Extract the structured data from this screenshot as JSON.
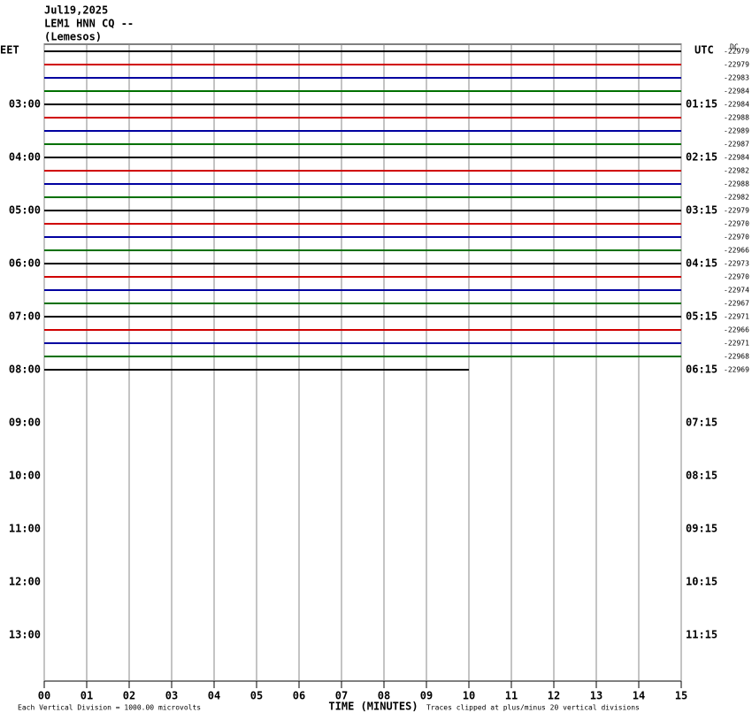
{
  "chart_data": {
    "type": "helicorder",
    "title": [
      "Jul19,2025",
      "LEM1 HNN CQ --",
      "(Lemesos)"
    ],
    "left_zone": "EET",
    "right_zone": "UTC",
    "offset_header": "DC",
    "left_hours": [
      "03:00",
      "04:00",
      "05:00",
      "06:00",
      "07:00",
      "08:00",
      "09:00",
      "10:00",
      "11:00",
      "12:00",
      "13:00"
    ],
    "right_hours": [
      "01:15",
      "02:15",
      "03:15",
      "04:15",
      "05:15",
      "06:15",
      "07:15",
      "08:15",
      "09:15",
      "10:15",
      "11:15"
    ],
    "trace_colors": [
      "#000000",
      "#d00000",
      "#0000a0",
      "#007000"
    ],
    "offsets": [
      -22979,
      -22979,
      -22983,
      -22984,
      -22984,
      -22988,
      -22989,
      -22987,
      -22984,
      -22982,
      -22988,
      -22982,
      -22979,
      -22970,
      -22970,
      -22966,
      -22973,
      -22970,
      -22974,
      -22967,
      -22971,
      -22966,
      -22971,
      -22968,
      -22969
    ],
    "last_trace_end": 10,
    "xlim": [
      0,
      15
    ],
    "xticks": [
      {
        "value": 0,
        "label": "00"
      },
      {
        "value": 1,
        "label": "01"
      },
      {
        "value": 2,
        "label": "02"
      },
      {
        "value": 3,
        "label": "03"
      },
      {
        "value": 4,
        "label": "04"
      },
      {
        "value": 5,
        "label": "05"
      },
      {
        "value": 6,
        "label": "06"
      },
      {
        "value": 7,
        "label": "07"
      },
      {
        "value": 8,
        "label": "08"
      },
      {
        "value": 9,
        "label": "09"
      },
      10,
      11,
      12,
      13,
      14,
      15
    ],
    "xlabel": "TIME (MINUTES)",
    "footer_left": "Each Vertical Division = 1000.00 microvolts",
    "footer_right": "Traces clipped at plus/minus 20 vertical divisions",
    "grid": true
  }
}
